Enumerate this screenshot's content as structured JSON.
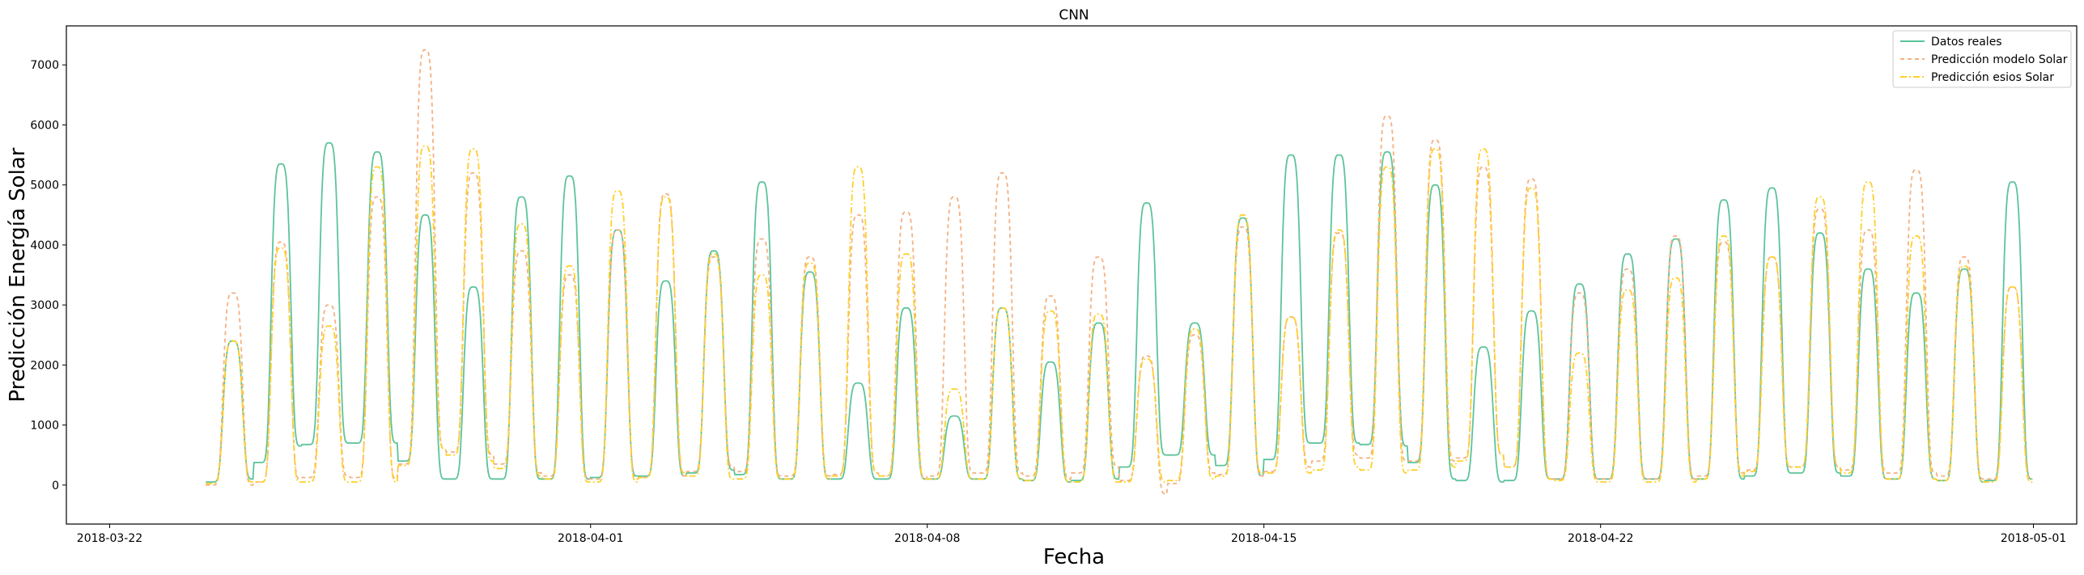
{
  "chart_data": {
    "type": "line",
    "title": "CNN",
    "xlabel": "Fecha",
    "ylabel": "Predicción Energía Solar",
    "x_ticks": [
      "2018-03-22",
      "2018-04-01",
      "2018-04-08",
      "2018-04-15",
      "2018-04-22",
      "2018-05-01"
    ],
    "x_tick_days": [
      -2,
      8,
      15,
      22,
      29,
      38
    ],
    "y_ticks": [
      0,
      1000,
      2000,
      3000,
      4000,
      5000,
      6000,
      7000
    ],
    "xlim_days": [
      -2.9,
      38.9
    ],
    "ylim": [
      -650,
      7650
    ],
    "grid": false,
    "legend_position": "top-right",
    "series": [
      {
        "name": "Datos reales",
        "color": "#5cc49a",
        "dash": "solid",
        "peaks": [
          2400,
          5350,
          5700,
          5550,
          4500,
          3300,
          4800,
          5150,
          4250,
          3400,
          3900,
          5050,
          3550,
          1700,
          2950,
          1150,
          2950,
          2050,
          2700,
          4700,
          2700,
          4450,
          5500,
          5500,
          5550,
          5000,
          2300,
          2900,
          3350,
          3850,
          4100,
          4750,
          4950,
          4200,
          3600,
          3200,
          3600,
          5050
        ],
        "night_levels": [
          100,
          650,
          700,
          700,
          100,
          100,
          100,
          100,
          150,
          150,
          250,
          100,
          100,
          100,
          100,
          100,
          100,
          50,
          100,
          500,
          500,
          150,
          700,
          700,
          650,
          100,
          50,
          100,
          100,
          100,
          100,
          100,
          200,
          200,
          100,
          100,
          50,
          100
        ]
      },
      {
        "name": "Predicción modelo Solar",
        "color": "#f4b183",
        "dash": "5,4",
        "peaks": [
          3200,
          4050,
          3000,
          4800,
          7250,
          5200,
          3900,
          3500,
          4250,
          4850,
          3800,
          4100,
          3800,
          4500,
          4550,
          4800,
          5200,
          3150,
          3800,
          2150,
          2500,
          4300,
          2800,
          4200,
          6150,
          5750,
          5300,
          5100,
          3200,
          3600,
          4150,
          4050,
          3800,
          4600,
          4250,
          5250,
          3800,
          3300
        ],
        "night_levels": [
          0,
          100,
          150,
          100,
          600,
          500,
          200,
          100,
          100,
          150,
          300,
          150,
          150,
          200,
          100,
          200,
          200,
          100,
          300,
          -150,
          200,
          150,
          300,
          500,
          400,
          400,
          500,
          100,
          100,
          100,
          100,
          200,
          300,
          300,
          200,
          200,
          100,
          100
        ]
      },
      {
        "name": "Predicción esios Solar",
        "color": "#ffd02a",
        "dash": "8,3,2,3",
        "peaks": [
          2400,
          3950,
          2650,
          5300,
          5650,
          5600,
          4350,
          3650,
          4900,
          4800,
          3850,
          3500,
          3700,
          5300,
          3850,
          1600,
          2950,
          2900,
          2850,
          2100,
          2600,
          4500,
          2800,
          4250,
          5300,
          5600,
          5600,
          4950,
          2200,
          3250,
          3450,
          4150,
          3800,
          4800,
          5050,
          4150,
          3650,
          3300
        ],
        "night_levels": [
          50,
          50,
          50,
          50,
          600,
          400,
          150,
          50,
          50,
          200,
          100,
          100,
          100,
          200,
          100,
          100,
          100,
          50,
          50,
          50,
          100,
          200,
          200,
          300,
          200,
          300,
          500,
          100,
          50,
          50,
          50,
          150,
          300,
          300,
          100,
          100,
          50,
          50
        ]
      }
    ]
  }
}
